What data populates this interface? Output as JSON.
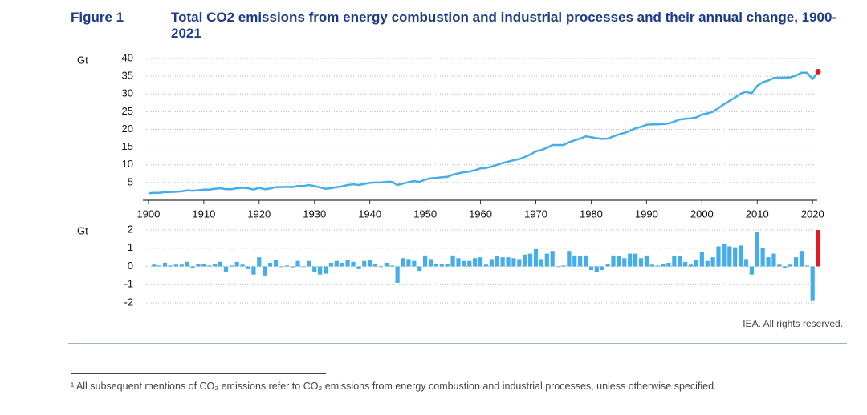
{
  "figure_label": "Figure 1",
  "title": "Total CO2 emissions from energy combustion and industrial processes and their annual change, 1900-2021",
  "source": "IEA. All rights reserved.",
  "footnote": "¹ All subsequent mentions of CO₂ emissions refer to CO₂ emissions from energy combustion and industrial processes, unless otherwise specified.",
  "chart_data": [
    {
      "type": "line",
      "y_label": "Gt",
      "color": "#45aeea",
      "highlight_color": "#e8191e",
      "grid": true,
      "xlim": [
        1899,
        2022
      ],
      "xticks": [
        1900,
        1910,
        1920,
        1930,
        1940,
        1950,
        1960,
        1970,
        1980,
        1990,
        2000,
        2010,
        2020
      ],
      "ylim": [
        0,
        40
      ],
      "yticks": [
        5,
        10,
        15,
        20,
        25,
        30,
        35,
        40
      ],
      "x": [
        1900,
        1901,
        1902,
        1903,
        1904,
        1905,
        1906,
        1907,
        1908,
        1909,
        1910,
        1911,
        1912,
        1913,
        1914,
        1915,
        1916,
        1917,
        1918,
        1919,
        1920,
        1921,
        1922,
        1923,
        1924,
        1925,
        1926,
        1927,
        1928,
        1929,
        1930,
        1931,
        1932,
        1933,
        1934,
        1935,
        1936,
        1937,
        1938,
        1939,
        1940,
        1941,
        1942,
        1943,
        1944,
        1945,
        1946,
        1947,
        1948,
        1949,
        1950,
        1951,
        1952,
        1953,
        1954,
        1955,
        1956,
        1957,
        1958,
        1959,
        1960,
        1961,
        1962,
        1963,
        1964,
        1965,
        1966,
        1967,
        1968,
        1969,
        1970,
        1971,
        1972,
        1973,
        1974,
        1975,
        1976,
        1977,
        1978,
        1979,
        1980,
        1981,
        1982,
        1983,
        1984,
        1985,
        1986,
        1987,
        1988,
        1989,
        1990,
        1991,
        1992,
        1993,
        1994,
        1995,
        1996,
        1997,
        1998,
        1999,
        2000,
        2001,
        2002,
        2003,
        2004,
        2005,
        2006,
        2007,
        2008,
        2009,
        2010,
        2011,
        2012,
        2013,
        2014,
        2015,
        2016,
        2017,
        2018,
        2019,
        2020,
        2021
      ],
      "values": [
        2.0,
        2.1,
        2.1,
        2.3,
        2.3,
        2.4,
        2.5,
        2.8,
        2.7,
        2.8,
        3.0,
        3.0,
        3.2,
        3.4,
        3.1,
        3.1,
        3.4,
        3.5,
        3.4,
        3.0,
        3.5,
        3.1,
        3.3,
        3.7,
        3.7,
        3.8,
        3.7,
        4.0,
        4.0,
        4.3,
        4.0,
        3.6,
        3.2,
        3.4,
        3.7,
        3.9,
        4.3,
        4.5,
        4.3,
        4.6,
        4.9,
        5.0,
        5.0,
        5.2,
        5.2,
        4.3,
        4.7,
        5.1,
        5.4,
        5.2,
        5.8,
        6.2,
        6.3,
        6.5,
        6.6,
        7.2,
        7.6,
        7.9,
        8.1,
        8.5,
        9.0,
        9.1,
        9.5,
        10.0,
        10.5,
        10.9,
        11.3,
        11.6,
        12.2,
        12.9,
        13.8,
        14.2,
        14.8,
        15.6,
        15.6,
        15.6,
        16.4,
        16.9,
        17.4,
        18.0,
        17.8,
        17.5,
        17.3,
        17.4,
        18.0,
        18.6,
        19.0,
        19.6,
        20.3,
        20.7,
        21.3,
        21.4,
        21.4,
        21.5,
        21.7,
        22.2,
        22.8,
        23.0,
        23.1,
        23.4,
        24.2,
        24.5,
        25.0,
        26.0,
        27.1,
        28.1,
        29.0,
        30.1,
        30.6,
        30.2,
        32.3,
        33.3,
        33.8,
        34.5,
        34.6,
        34.6,
        34.7,
        35.2,
        36.0,
        36.0,
        34.2,
        36.3
      ]
    },
    {
      "type": "bar",
      "y_label": "Gt",
      "color": "#45aeea",
      "highlight_color": "#e8191e",
      "grid": true,
      "xlim": [
        1899,
        2022
      ],
      "ylim": [
        -2.2,
        2.2
      ],
      "yticks": [
        -2,
        -1,
        0,
        1,
        2
      ],
      "x": [
        1900,
        1901,
        1902,
        1903,
        1904,
        1905,
        1906,
        1907,
        1908,
        1909,
        1910,
        1911,
        1912,
        1913,
        1914,
        1915,
        1916,
        1917,
        1918,
        1919,
        1920,
        1921,
        1922,
        1923,
        1924,
        1925,
        1926,
        1927,
        1928,
        1929,
        1930,
        1931,
        1932,
        1933,
        1934,
        1935,
        1936,
        1937,
        1938,
        1939,
        1940,
        1941,
        1942,
        1943,
        1944,
        1945,
        1946,
        1947,
        1948,
        1949,
        1950,
        1951,
        1952,
        1953,
        1954,
        1955,
        1956,
        1957,
        1958,
        1959,
        1960,
        1961,
        1962,
        1963,
        1964,
        1965,
        1966,
        1967,
        1968,
        1969,
        1970,
        1971,
        1972,
        1973,
        1974,
        1975,
        1976,
        1977,
        1978,
        1979,
        1980,
        1981,
        1982,
        1983,
        1984,
        1985,
        1986,
        1987,
        1988,
        1989,
        1990,
        1991,
        1992,
        1993,
        1994,
        1995,
        1996,
        1997,
        1998,
        1999,
        2000,
        2001,
        2002,
        2003,
        2004,
        2005,
        2006,
        2007,
        2008,
        2009,
        2010,
        2011,
        2012,
        2013,
        2014,
        2015,
        2016,
        2017,
        2018,
        2019,
        2020,
        2021
      ],
      "values": [
        null,
        0.1,
        0.05,
        0.2,
        0.05,
        0.1,
        0.1,
        0.25,
        -0.1,
        0.15,
        0.15,
        0.05,
        0.15,
        0.25,
        -0.3,
        0.05,
        0.25,
        0.1,
        -0.15,
        -0.45,
        0.5,
        -0.5,
        0.2,
        0.35,
        0.0,
        0.05,
        -0.05,
        0.3,
        0.0,
        0.3,
        -0.3,
        -0.45,
        -0.4,
        0.2,
        0.3,
        0.2,
        0.35,
        0.25,
        -0.15,
        0.3,
        0.35,
        0.15,
        0.0,
        0.2,
        0.05,
        -0.9,
        0.45,
        0.4,
        0.3,
        -0.25,
        0.6,
        0.4,
        0.15,
        0.15,
        0.15,
        0.6,
        0.45,
        0.3,
        0.3,
        0.45,
        0.5,
        0.1,
        0.4,
        0.55,
        0.5,
        0.5,
        0.45,
        0.4,
        0.65,
        0.7,
        0.95,
        0.4,
        0.7,
        0.85,
        0.0,
        0.05,
        0.85,
        0.6,
        0.55,
        0.6,
        -0.2,
        -0.3,
        -0.2,
        0.15,
        0.6,
        0.55,
        0.45,
        0.7,
        0.7,
        0.45,
        0.6,
        0.1,
        0.05,
        0.15,
        0.2,
        0.55,
        0.55,
        0.25,
        0.1,
        0.35,
        0.8,
        0.3,
        0.5,
        1.1,
        1.25,
        1.1,
        1.05,
        1.15,
        0.4,
        -0.45,
        1.9,
        1.0,
        0.5,
        0.7,
        0.1,
        -0.1,
        0.1,
        0.5,
        0.85,
        0.05,
        -1.9,
        2.0
      ]
    }
  ]
}
